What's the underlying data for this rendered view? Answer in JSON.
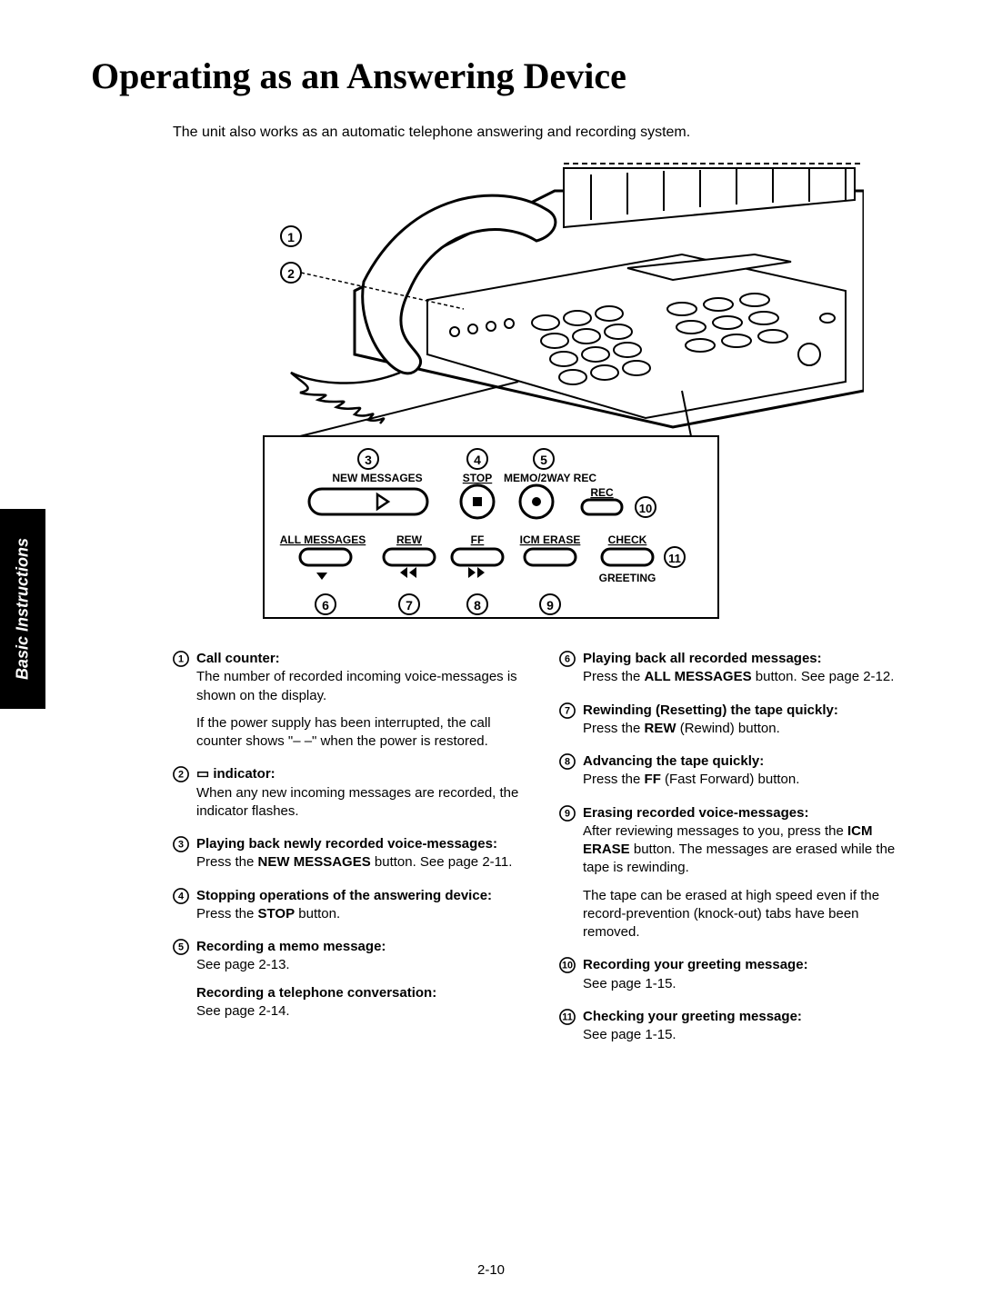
{
  "title": "Operating as an Answering Device",
  "intro": "The unit also works as an automatic telephone answering and recording system.",
  "sideTab": "Basic Instructions",
  "pageNumber": "2-10",
  "diagram": {
    "labels": {
      "newMessages": "NEW MESSAGES",
      "stop": "STOP",
      "memo2way": "MEMO/2WAY REC",
      "allMessages": "ALL MESSAGES",
      "rew": "REW",
      "ff": "FF",
      "icmErase": "ICM ERASE",
      "rec": "REC",
      "check": "CHECK",
      "greeting": "GREETING"
    },
    "callouts": [
      "1",
      "2",
      "3",
      "4",
      "5",
      "6",
      "7",
      "8",
      "9",
      "10",
      "11"
    ]
  },
  "leftItems": [
    {
      "num": "1",
      "title": "Call counter:",
      "body": "The number of recorded incoming voice-messages is shown on the display.",
      "extra": "If the power supply has been interrupted, the call counter shows \"– –\" when the power is restored."
    },
    {
      "num": "2",
      "title": "▭ indicator:",
      "body": "When any new incoming messages are recorded, the indicator flashes."
    },
    {
      "num": "3",
      "title": "Playing back newly recorded voice-messages:",
      "body": "Press the NEW MESSAGES button. See page 2-11.",
      "bold1": "NEW MESSAGES"
    },
    {
      "num": "4",
      "title": "Stopping operations of the answering device:",
      "body": "Press the STOP button.",
      "bold1": "STOP"
    },
    {
      "num": "5",
      "title": "Recording a memo message:",
      "body": "See page 2-13.",
      "extraTitle": "Recording a telephone conversation:",
      "extraBody": "See page 2-14."
    }
  ],
  "rightItems": [
    {
      "num": "6",
      "title": "Playing back all recorded messages:",
      "body": "Press the ALL MESSAGES button. See page 2-12.",
      "bold1": "ALL MESSAGES"
    },
    {
      "num": "7",
      "title": "Rewinding (Resetting) the tape quickly:",
      "body": "Press the REW (Rewind) button.",
      "bold1": "REW"
    },
    {
      "num": "8",
      "title": "Advancing the tape quickly:",
      "body": "Press the FF (Fast Forward) button.",
      "bold1": "FF"
    },
    {
      "num": "9",
      "title": "Erasing recorded voice-messages:",
      "body": "After reviewing messages to you, press the ICM ERASE button. The messages are erased while the tape is rewinding.",
      "bold1": "ICM ERASE",
      "extra": "The tape can be erased at high speed even if the record-prevention (knock-out) tabs have been removed."
    },
    {
      "num": "10",
      "title": "Recording your greeting message:",
      "body": "See page 1-15."
    },
    {
      "num": "11",
      "title": "Checking your greeting message:",
      "body": "See page 1-15."
    }
  ]
}
